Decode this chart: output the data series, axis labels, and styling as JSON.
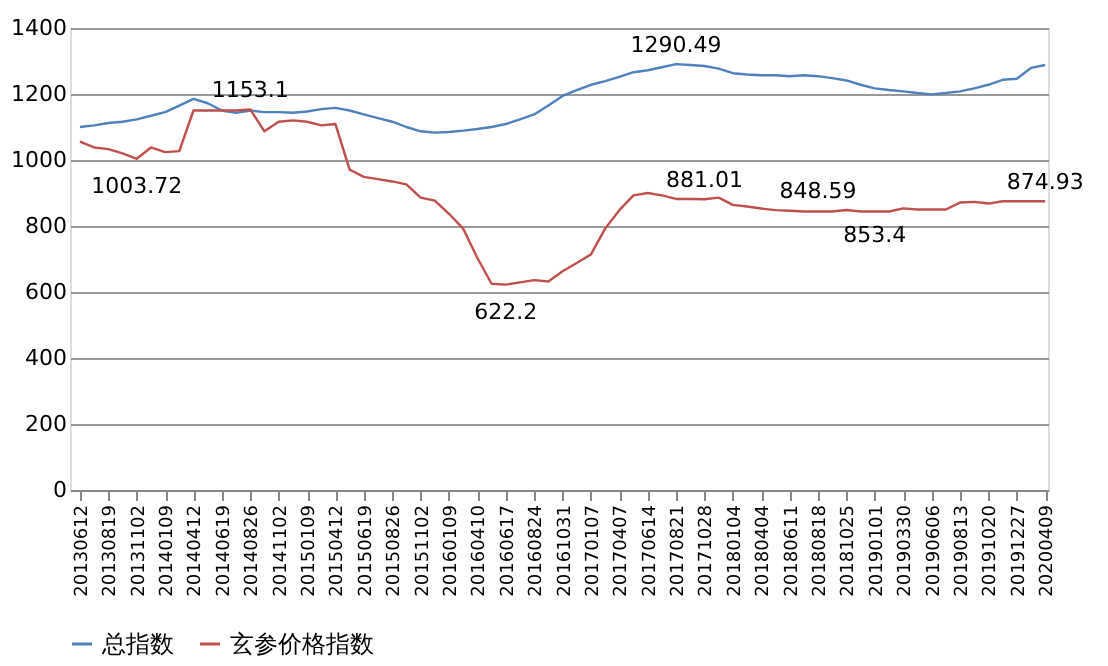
{
  "chart_data": {
    "type": "line",
    "categories": [
      "20130612",
      null,
      "20130819",
      null,
      "20131102",
      null,
      "20140109",
      null,
      "20140412",
      null,
      "20140619",
      null,
      "20140826",
      null,
      "20141102",
      null,
      "20150109",
      null,
      "20150412",
      null,
      "20150619",
      null,
      "20150826",
      null,
      "20151102",
      null,
      "20160109",
      null,
      "20160410",
      null,
      "20160617",
      null,
      "20160824",
      null,
      "20161031",
      null,
      "20170107",
      null,
      "20170407",
      null,
      "20170614",
      null,
      "20170821",
      null,
      "20171028",
      null,
      "20180104",
      null,
      "20180404",
      null,
      "20180611",
      null,
      "20180818",
      null,
      "20181025",
      null,
      "20190101",
      null,
      "20190330",
      null,
      "20190606",
      null,
      "20190813",
      null,
      "20191020",
      null,
      "20191227",
      null,
      "20200409"
    ],
    "series": [
      {
        "name": "总指数",
        "color": "#4f81bd",
        "values": [
          1100,
          1105,
          1112,
          1116,
          1123,
          1134,
          1145,
          1165,
          1185,
          1172,
          1150,
          1143,
          1150,
          1145,
          1145,
          1143,
          1147,
          1154,
          1158,
          1150,
          1138,
          1127,
          1116,
          1100,
          1087,
          1083,
          1085,
          1089,
          1094,
          1100,
          1109,
          1123,
          1138,
          1165,
          1194,
          1212,
          1228,
          1239,
          1252,
          1266,
          1272,
          1281,
          1290.49,
          1288,
          1285,
          1277,
          1263,
          1259,
          1257,
          1257,
          1254,
          1257,
          1254,
          1248,
          1241,
          1228,
          1217,
          1212,
          1208,
          1203,
          1199,
          1203,
          1208,
          1217,
          1228,
          1243,
          1246,
          1279,
          1288
        ]
      },
      {
        "name": "玄参价格指数",
        "color": "#c0504d",
        "values": [
          1056,
          1038,
          1033,
          1020,
          1003.72,
          1038,
          1024,
          1027,
          1150,
          1150,
          1150,
          1150,
          1153.1,
          1087,
          1116,
          1120,
          1116,
          1105,
          1109,
          971,
          949,
          942,
          935,
          926,
          886,
          877,
          837,
          792,
          703,
          625,
          622.2,
          629,
          636,
          632,
          663,
          688,
          714,
          792,
          848,
          893,
          900,
          893,
          882,
          882,
          881.01,
          886,
          864,
          859,
          853,
          848,
          846,
          844,
          844,
          844,
          848.59,
          844,
          844,
          844,
          853.4,
          850,
          850,
          850,
          871,
          873,
          868,
          875,
          875,
          875,
          874.93
        ]
      }
    ],
    "ylim": [
      0,
      1400
    ],
    "yticks": [
      0,
      200,
      400,
      600,
      800,
      1000,
      1200,
      1400
    ],
    "grid": "y",
    "legend": "bottom",
    "annotations": [
      {
        "text": "1003.72",
        "x": "20131102",
        "y": 1003.72
      },
      {
        "text": "1153.1",
        "x": "20140826",
        "y": 1153.1
      },
      {
        "text": "622.2",
        "x": "20160617",
        "y": 622.2
      },
      {
        "text": "1290.49",
        "x": "20170821",
        "y": 1290.49
      },
      {
        "text": "881.01",
        "x": "20171028",
        "y": 881.01
      },
      {
        "text": "848.59",
        "x": "20180818",
        "y": 848.59
      },
      {
        "text": "853.4",
        "x": "20190101",
        "y": 853.4
      },
      {
        "text": "874.93",
        "x": "20200409",
        "y": 874.93
      }
    ]
  }
}
